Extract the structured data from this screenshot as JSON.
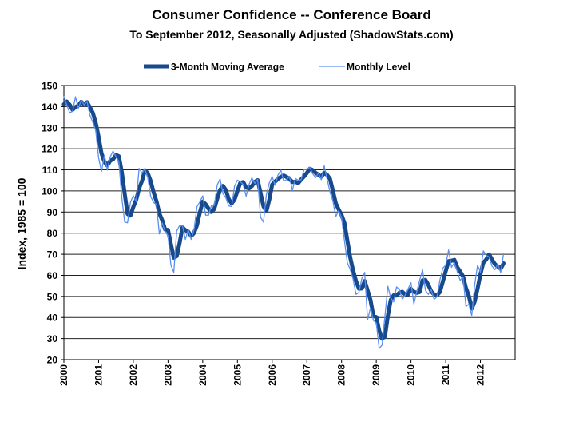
{
  "chart_data": {
    "type": "line",
    "title": "Consumer Confidence -- Conference Board",
    "subtitle": "To September 2012, Seasonally Adjusted (ShadowStats.com)",
    "y_label": "Index, 1985 = 100",
    "categories": [
      "2000",
      null,
      null,
      null,
      null,
      null,
      null,
      null,
      null,
      null,
      null,
      null,
      "2001",
      null,
      null,
      null,
      null,
      null,
      null,
      null,
      null,
      null,
      null,
      null,
      "2002",
      null,
      null,
      null,
      null,
      null,
      null,
      null,
      null,
      null,
      null,
      null,
      "2003",
      null,
      null,
      null,
      null,
      null,
      null,
      null,
      null,
      null,
      null,
      null,
      "2004",
      null,
      null,
      null,
      null,
      null,
      null,
      null,
      null,
      null,
      null,
      null,
      "2005",
      null,
      null,
      null,
      null,
      null,
      null,
      null,
      null,
      null,
      null,
      null,
      "2006",
      null,
      null,
      null,
      null,
      null,
      null,
      null,
      null,
      null,
      null,
      null,
      "2007",
      null,
      null,
      null,
      null,
      null,
      null,
      null,
      null,
      null,
      null,
      null,
      "2008",
      null,
      null,
      null,
      null,
      null,
      null,
      null,
      null,
      null,
      null,
      null,
      "2009",
      null,
      null,
      null,
      null,
      null,
      null,
      null,
      null,
      null,
      null,
      null,
      "2010",
      null,
      null,
      null,
      null,
      null,
      null,
      null,
      null,
      null,
      null,
      null,
      "2011",
      null,
      null,
      null,
      null,
      null,
      null,
      null,
      null,
      null,
      null,
      null,
      "2012",
      null,
      null,
      null,
      null,
      null,
      null,
      null,
      null
    ],
    "series": [
      {
        "name": "3-Month Moving Average",
        "color": "#174a8c",
        "width": 5,
        "values": [
          141.1,
          142.4,
          140.9,
          138.5,
          139.8,
          140.5,
          142.3,
          141.0,
          142.1,
          139.7,
          137.0,
          132.3,
          125.6,
          117.8,
          113.9,
          112.0,
          114.3,
          115.0,
          117.1,
          116.4,
          109.1,
          98.8,
          89.1,
          88.3,
          92.4,
          95.8,
          101.2,
          104.7,
          109.8,
          108.4,
          104.7,
          99.4,
          95.2,
          89.3,
          86.1,
          81.7,
          81.5,
          74.8,
          68.3,
          69.1,
          75.3,
          82.7,
          81.4,
          80.7,
          78.6,
          80.1,
          83.7,
          89.7,
          95.0,
          93.7,
          91.6,
          90.0,
          91.5,
          96.3,
          100.5,
          102.4,
          100.4,
          96.1,
          94.1,
          95.9,
          100.0,
          103.9,
          104.2,
          101.6,
          101.2,
          102.3,
          104.3,
          105.1,
          98.9,
          92.7,
          90.3,
          95.8,
          103.0,
          104.4,
          105.7,
          106.7,
          107.3,
          106.6,
          105.7,
          104.2,
          104.4,
          103.7,
          105.4,
          106.8,
          108.5,
          110.5,
          109.9,
          108.6,
          107.7,
          106.7,
          108.6,
          107.6,
          105.7,
          100.1,
          94.2,
          91.2,
          88.6,
          84.8,
          76.5,
          68.4,
          62.3,
          57.3,
          53.7,
          53.8,
          57.3,
          52.9,
          48.3,
          40.7,
          40.2,
          33.8,
          29.9,
          31.0,
          40.8,
          48.3,
          50.5,
          50.4,
          51.8,
          52.2,
          50.9,
          51.0,
          53.6,
          52.2,
          51.7,
          52.1,
          57.6,
          57.8,
          55.5,
          52.4,
          50.9,
          50.6,
          52.1,
          57.0,
          62.0,
          66.7,
          66.9,
          67.3,
          63.8,
          61.8,
          59.5,
          54.0,
          50.3,
          44.2,
          47.5,
          53.6,
          60.5,
          66.0,
          67.5,
          69.9,
          67.5,
          65.3,
          64.2,
          63.1,
          65.7
        ]
      },
      {
        "name": "Monthly Level",
        "color": "#5b8ff0",
        "width": 1.3,
        "values": [
          144.7,
          140.8,
          137.1,
          137.7,
          144.7,
          139.2,
          143.0,
          140.8,
          142.5,
          135.8,
          132.6,
          128.6,
          115.7,
          109.2,
          116.9,
          109.9,
          116.1,
          118.9,
          116.3,
          114.0,
          97.0,
          85.3,
          84.9,
          94.6,
          97.8,
          95.0,
          110.7,
          108.5,
          110.3,
          106.3,
          97.4,
          94.5,
          93.7,
          79.6,
          84.9,
          80.7,
          78.8,
          64.8,
          61.4,
          81.0,
          83.6,
          83.5,
          77.0,
          81.7,
          77.0,
          81.7,
          92.5,
          94.8,
          97.7,
          88.5,
          88.5,
          93.0,
          93.1,
          102.8,
          105.7,
          98.7,
          96.7,
          92.9,
          92.6,
          102.3,
          105.1,
          104.4,
          103.0,
          97.5,
          103.1,
          106.2,
          103.6,
          105.5,
          87.5,
          85.2,
          98.3,
          103.8,
          106.8,
          102.7,
          107.5,
          109.8,
          104.7,
          105.4,
          107.0,
          100.2,
          105.9,
          105.1,
          105.3,
          110.0,
          110.2,
          111.2,
          108.2,
          106.3,
          108.5,
          105.3,
          111.9,
          105.6,
          99.5,
          95.2,
          87.8,
          90.6,
          87.3,
          76.4,
          65.9,
          62.8,
          58.1,
          51.0,
          51.9,
          58.5,
          61.4,
          38.8,
          44.7,
          38.6,
          37.4,
          25.3,
          26.9,
          40.8,
          54.8,
          49.3,
          47.4,
          54.5,
          53.4,
          48.7,
          50.6,
          53.6,
          56.5,
          46.4,
          52.3,
          57.7,
          62.7,
          52.9,
          51.0,
          53.2,
          48.6,
          49.9,
          57.8,
          63.4,
          64.8,
          72.0,
          63.8,
          66.0,
          61.7,
          57.6,
          59.2,
          45.2,
          46.4,
          40.9,
          55.2,
          64.8,
          61.5,
          71.6,
          69.5,
          68.7,
          64.4,
          62.7,
          65.4,
          61.3,
          70.3
        ]
      }
    ],
    "ylim": [
      20,
      150
    ],
    "yticks": [
      20,
      30,
      40,
      50,
      60,
      70,
      80,
      90,
      100,
      110,
      120,
      130,
      140,
      150
    ],
    "grid": true,
    "legend": "top"
  }
}
